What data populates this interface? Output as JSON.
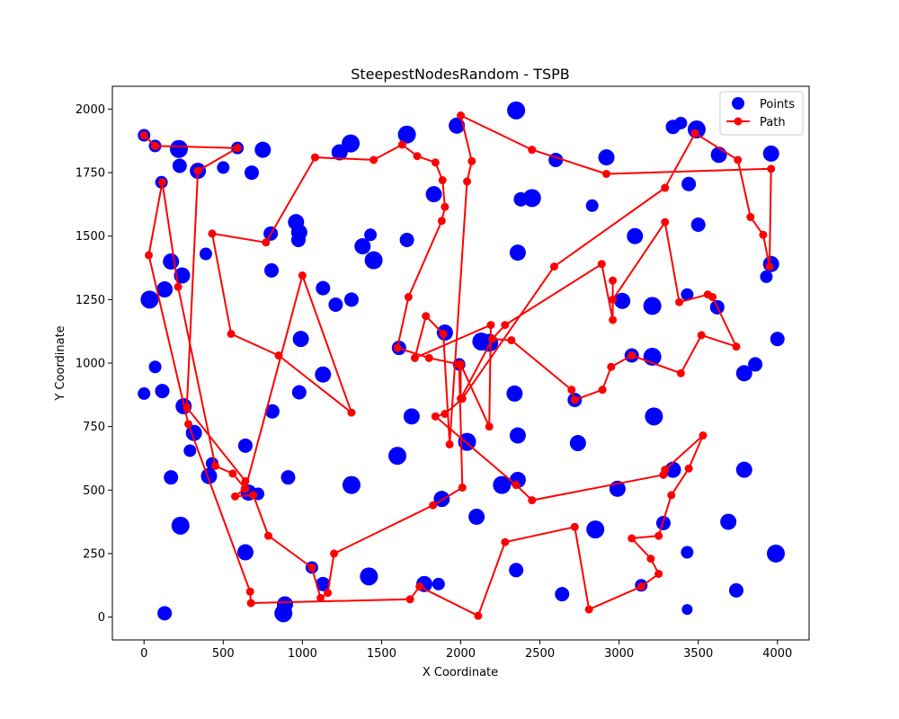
{
  "chart_data": {
    "type": "scatter",
    "title": "SteepestNodesRandom - TSPB",
    "xlabel": "X Coordinate",
    "ylabel": "Y Coordinate",
    "xlim": [
      -200,
      4200
    ],
    "ylim": [
      -90,
      2090
    ],
    "xticks": [
      0,
      500,
      1000,
      1500,
      2000,
      2500,
      3000,
      3500,
      4000
    ],
    "yticks": [
      0,
      250,
      500,
      750,
      1000,
      1250,
      1500,
      1750,
      2000
    ],
    "grid": false,
    "legend": {
      "position": "top-right",
      "entries": [
        "Points",
        "Path"
      ]
    },
    "colors": {
      "points": "#0000ff",
      "path": "#ff0000"
    },
    "series": [
      {
        "name": "Points",
        "kind": "scatter",
        "points": [
          [
            0,
            1897,
            7
          ],
          [
            70,
            1855,
            7
          ],
          [
            110,
            1712,
            7
          ],
          [
            220,
            1843,
            10
          ],
          [
            225,
            1777,
            8
          ],
          [
            340,
            1757,
            9
          ],
          [
            500,
            1770,
            7
          ],
          [
            590,
            1847,
            7
          ],
          [
            680,
            1750,
            8
          ],
          [
            750,
            1840,
            9
          ],
          [
            0,
            880,
            7
          ],
          [
            70,
            985,
            7
          ],
          [
            115,
            890,
            8
          ],
          [
            35,
            1250,
            10
          ],
          [
            130,
            1290,
            9
          ],
          [
            170,
            1400,
            9
          ],
          [
            240,
            1345,
            9
          ],
          [
            250,
            830,
            9
          ],
          [
            315,
            725,
            9
          ],
          [
            290,
            655,
            7
          ],
          [
            170,
            550,
            8
          ],
          [
            410,
            555,
            9
          ],
          [
            230,
            360,
            10
          ],
          [
            430,
            605,
            7
          ],
          [
            640,
            675,
            8
          ],
          [
            660,
            490,
            9
          ],
          [
            720,
            485,
            7
          ],
          [
            640,
            255,
            9
          ],
          [
            890,
            50,
            9
          ],
          [
            880,
            15,
            10
          ],
          [
            130,
            15,
            8
          ],
          [
            390,
            1430,
            7
          ],
          [
            800,
            1510,
            8
          ],
          [
            805,
            1365,
            8
          ],
          [
            960,
            1555,
            9
          ],
          [
            980,
            1515,
            9
          ],
          [
            975,
            1485,
            8
          ],
          [
            1130,
            1295,
            8
          ],
          [
            1210,
            1230,
            8
          ],
          [
            1310,
            1250,
            8
          ],
          [
            1380,
            1460,
            9
          ],
          [
            1430,
            1505,
            7
          ],
          [
            1450,
            1405,
            10
          ],
          [
            1235,
            1830,
            9
          ],
          [
            1305,
            1865,
            10
          ],
          [
            1660,
            1900,
            10
          ],
          [
            1660,
            1485,
            8
          ],
          [
            1830,
            1665,
            9
          ],
          [
            1975,
            1935,
            9
          ],
          [
            2350,
            1995,
            10
          ],
          [
            2380,
            1645,
            8
          ],
          [
            2450,
            1650,
            10
          ],
          [
            2600,
            1800,
            8
          ],
          [
            2920,
            1810,
            9
          ],
          [
            2830,
            1620,
            7
          ],
          [
            3100,
            1500,
            9
          ],
          [
            3340,
            1930,
            8
          ],
          [
            3390,
            1945,
            7
          ],
          [
            3490,
            1920,
            10
          ],
          [
            3440,
            1705,
            8
          ],
          [
            3500,
            1545,
            8
          ],
          [
            3630,
            1820,
            9
          ],
          [
            3960,
            1825,
            9
          ],
          [
            3960,
            1390,
            9
          ],
          [
            3930,
            1340,
            7
          ],
          [
            3620,
            1220,
            8
          ],
          [
            3430,
            1270,
            7
          ],
          [
            3210,
            1225,
            10
          ],
          [
            3020,
            1245,
            9
          ],
          [
            2360,
            1435,
            9
          ],
          [
            990,
            1095,
            9
          ],
          [
            1130,
            955,
            9
          ],
          [
            980,
            885,
            8
          ],
          [
            810,
            810,
            8
          ],
          [
            910,
            550,
            8
          ],
          [
            1310,
            520,
            10
          ],
          [
            1600,
            635,
            10
          ],
          [
            1690,
            790,
            9
          ],
          [
            1610,
            1060,
            8
          ],
          [
            1900,
            1120,
            9
          ],
          [
            1990,
            995,
            7
          ],
          [
            2130,
            1085,
            10
          ],
          [
            2180,
            1080,
            10
          ],
          [
            2340,
            880,
            9
          ],
          [
            2360,
            715,
            9
          ],
          [
            2720,
            855,
            8
          ],
          [
            2740,
            685,
            9
          ],
          [
            3080,
            1030,
            8
          ],
          [
            3210,
            1025,
            10
          ],
          [
            3220,
            790,
            10
          ],
          [
            3790,
            960,
            9
          ],
          [
            3860,
            995,
            8
          ],
          [
            4000,
            1095,
            8
          ],
          [
            2040,
            690,
            10
          ],
          [
            1880,
            465,
            9
          ],
          [
            2100,
            395,
            9
          ],
          [
            2260,
            520,
            10
          ],
          [
            2360,
            540,
            9
          ],
          [
            2990,
            505,
            9
          ],
          [
            3340,
            580,
            9
          ],
          [
            3790,
            580,
            9
          ],
          [
            3690,
            375,
            9
          ],
          [
            3990,
            250,
            10
          ],
          [
            3280,
            370,
            8
          ],
          [
            3430,
            255,
            7
          ],
          [
            3430,
            30,
            6
          ],
          [
            3740,
            105,
            8
          ],
          [
            3140,
            125,
            7
          ],
          [
            2640,
            90,
            8
          ],
          [
            2850,
            345,
            10
          ],
          [
            2350,
            185,
            8
          ],
          [
            1420,
            160,
            10
          ],
          [
            1770,
            130,
            9
          ],
          [
            1860,
            130,
            7
          ],
          [
            1130,
            130,
            8
          ],
          [
            1060,
            195,
            7
          ]
        ]
      },
      {
        "name": "Path",
        "kind": "line",
        "points": [
          [
            0,
            1897
          ],
          [
            70,
            1855
          ],
          [
            590,
            1847
          ],
          [
            340,
            1757
          ],
          [
            270,
            825
          ],
          [
            640,
            535
          ],
          [
            635,
            505
          ],
          [
            575,
            475
          ],
          [
            690,
            480
          ],
          [
            785,
            320
          ],
          [
            1060,
            195
          ],
          [
            1115,
            75
          ],
          [
            1160,
            95
          ],
          [
            1200,
            250
          ],
          [
            1825,
            440
          ],
          [
            2010,
            510
          ],
          [
            1990,
            995
          ],
          [
            1800,
            1020
          ],
          [
            1600,
            1060
          ],
          [
            1670,
            1260
          ],
          [
            1880,
            1560
          ],
          [
            1900,
            1615
          ],
          [
            1885,
            1720
          ],
          [
            1840,
            1790
          ],
          [
            1725,
            1815
          ],
          [
            1630,
            1860
          ],
          [
            1450,
            1800
          ],
          [
            1080,
            1810
          ],
          [
            770,
            1475
          ],
          [
            430,
            1510
          ],
          [
            550,
            1115
          ],
          [
            850,
            1030
          ],
          [
            1310,
            805
          ],
          [
            1000,
            1345
          ],
          [
            640,
            505
          ],
          [
            560,
            565
          ],
          [
            450,
            595
          ],
          [
            215,
            1300
          ],
          [
            115,
            1712
          ],
          [
            30,
            1425
          ],
          [
            280,
            760
          ],
          [
            670,
            100
          ],
          [
            675,
            55
          ],
          [
            1680,
            70
          ],
          [
            1740,
            120
          ],
          [
            2110,
            5
          ],
          [
            2280,
            295
          ],
          [
            2720,
            355
          ],
          [
            2810,
            30
          ],
          [
            3140,
            120
          ],
          [
            3250,
            170
          ],
          [
            3200,
            230
          ],
          [
            3080,
            310
          ],
          [
            3250,
            320
          ],
          [
            3330,
            480
          ],
          [
            3440,
            585
          ],
          [
            3530,
            715
          ],
          [
            3290,
            580
          ],
          [
            3280,
            560
          ],
          [
            2450,
            460
          ],
          [
            2350,
            520
          ],
          [
            1840,
            790
          ],
          [
            1900,
            800
          ],
          [
            2010,
            860
          ],
          [
            2590,
            1380
          ],
          [
            3290,
            1690
          ],
          [
            3480,
            1905
          ],
          [
            3750,
            1800
          ],
          [
            3830,
            1575
          ],
          [
            3910,
            1505
          ],
          [
            3950,
            1380
          ],
          [
            3960,
            1765
          ],
          [
            2920,
            1745
          ],
          [
            2450,
            1840
          ],
          [
            2000,
            1975
          ],
          [
            2070,
            1795
          ],
          [
            2040,
            1715
          ],
          [
            1930,
            680
          ],
          [
            1890,
            1115
          ],
          [
            1780,
            1185
          ],
          [
            1710,
            1020
          ],
          [
            2190,
            1150
          ],
          [
            2180,
            750
          ],
          [
            2000,
            995
          ],
          [
            2000,
            860
          ],
          [
            2200,
            1095
          ],
          [
            2320,
            1090
          ],
          [
            2700,
            895
          ],
          [
            2720,
            855
          ],
          [
            2895,
            895
          ],
          [
            2950,
            985
          ],
          [
            3080,
            1030
          ],
          [
            3390,
            960
          ],
          [
            3520,
            1110
          ],
          [
            3740,
            1065
          ],
          [
            3590,
            1260
          ],
          [
            3560,
            1270
          ],
          [
            3380,
            1240
          ],
          [
            3290,
            1555
          ],
          [
            2960,
            1250
          ],
          [
            2960,
            1325
          ],
          [
            2960,
            1170
          ],
          [
            2890,
            1390
          ],
          [
            2280,
            1150
          ],
          [
            2200,
            1095
          ]
        ]
      }
    ]
  }
}
